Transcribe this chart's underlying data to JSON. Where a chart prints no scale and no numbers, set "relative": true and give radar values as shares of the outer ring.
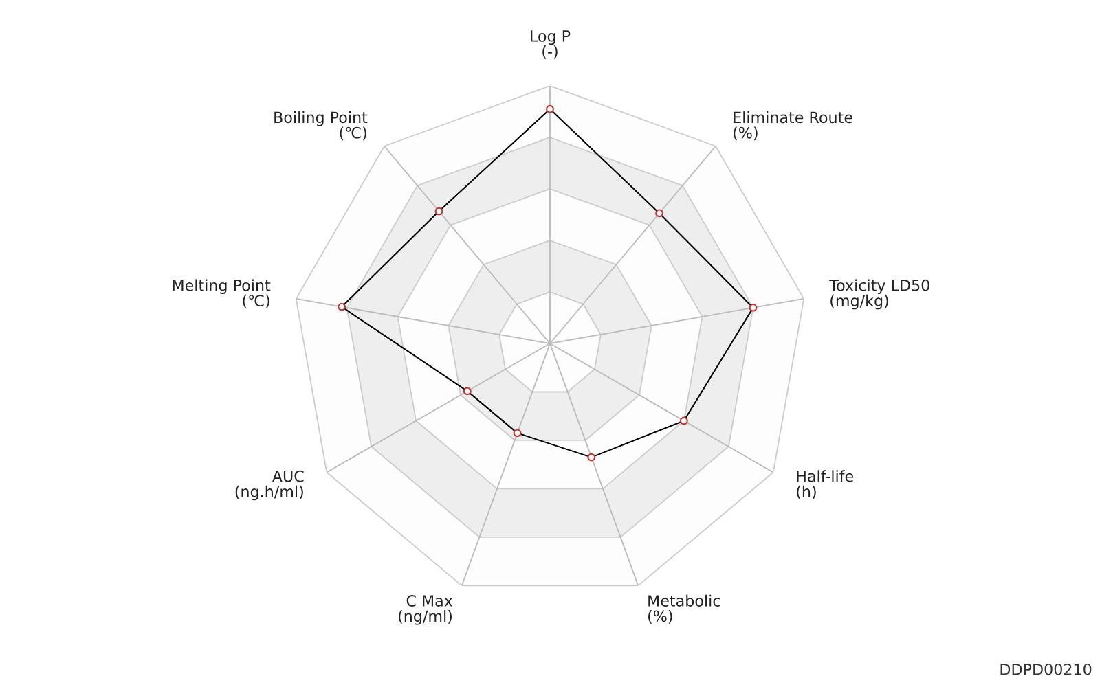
{
  "chart_data": {
    "type": "radar",
    "relative": true,
    "grid": true,
    "marker": "circle",
    "line_style": "solid",
    "categories": [
      "Log P\n(-)",
      "Eliminate Route\n(%)",
      "Toxicity LD50\n(mg/kg)",
      "Half-life\n(h)",
      "Metabolic\n(%)",
      "C Max\n(ng/ml)",
      "AUC\n(ng.h/ml)",
      "Melting Point\n(℃)",
      "Boiling Point\n(℃)"
    ],
    "series": [
      {
        "color": "#000000",
        "colors": [
          "#c23531",
          "#c23531",
          "#c23531",
          "#c23531",
          "#c23531",
          "#c23531",
          "#c23531",
          "#c23531",
          "#c23531"
        ],
        "values": [
          0.91,
          0.66,
          0.8,
          0.6,
          0.47,
          0.37,
          0.37,
          0.82,
          0.67
        ]
      }
    ],
    "annotations": [
      "DDPD00210"
    ]
  }
}
